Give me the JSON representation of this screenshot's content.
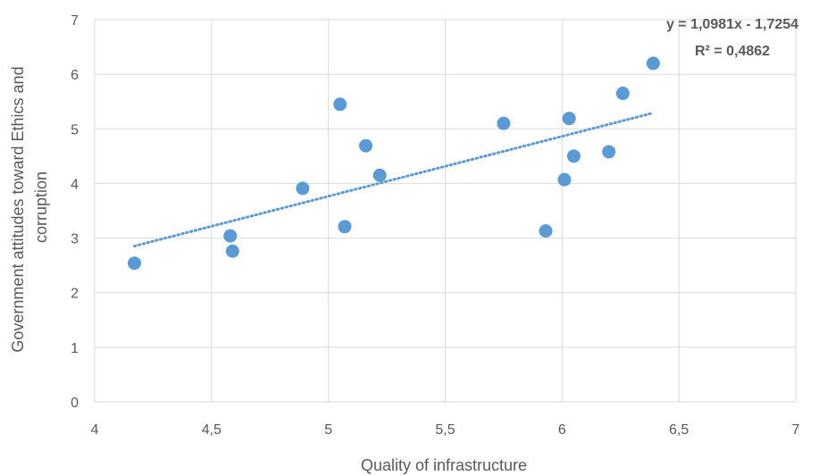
{
  "chart_data": {
    "type": "scatter",
    "title": "",
    "xlabel": "Quality of infrastructure",
    "ylabel_lines": [
      "Government attitudes toward Ethics and",
      "corruption"
    ],
    "xlim": [
      4,
      7
    ],
    "ylim": [
      0,
      7
    ],
    "x_ticks": [
      4,
      4.5,
      5,
      5.5,
      6,
      6.5,
      7
    ],
    "x_tick_labels": [
      "4",
      "4,5",
      "5",
      "5,5",
      "6",
      "6,5",
      "7"
    ],
    "y_ticks": [
      0,
      1,
      2,
      3,
      4,
      5,
      6,
      7
    ],
    "y_tick_labels": [
      "0",
      "1",
      "2",
      "3",
      "4",
      "5",
      "6",
      "7"
    ],
    "grid": true,
    "marker_color": "#5b9bd5",
    "points": [
      {
        "x": 4.17,
        "y": 2.54
      },
      {
        "x": 4.58,
        "y": 3.04
      },
      {
        "x": 4.59,
        "y": 2.76
      },
      {
        "x": 4.89,
        "y": 3.91
      },
      {
        "x": 5.05,
        "y": 5.45
      },
      {
        "x": 5.07,
        "y": 3.21
      },
      {
        "x": 5.16,
        "y": 4.69
      },
      {
        "x": 5.22,
        "y": 4.15
      },
      {
        "x": 5.75,
        "y": 5.1
      },
      {
        "x": 5.93,
        "y": 3.13
      },
      {
        "x": 6.01,
        "y": 4.07
      },
      {
        "x": 6.03,
        "y": 5.19
      },
      {
        "x": 6.05,
        "y": 4.5
      },
      {
        "x": 6.2,
        "y": 4.58
      },
      {
        "x": 6.26,
        "y": 5.65
      },
      {
        "x": 6.39,
        "y": 6.2
      }
    ],
    "trendline": {
      "type": "linear",
      "slope": 1.0981,
      "intercept": -1.7254,
      "x_range": [
        4.17,
        6.39
      ],
      "style": "dotted",
      "color": "#5b9bd5",
      "equation_label": "y = 1,0981x - 1,7254",
      "r2_label": "R² = 0,4862"
    }
  }
}
